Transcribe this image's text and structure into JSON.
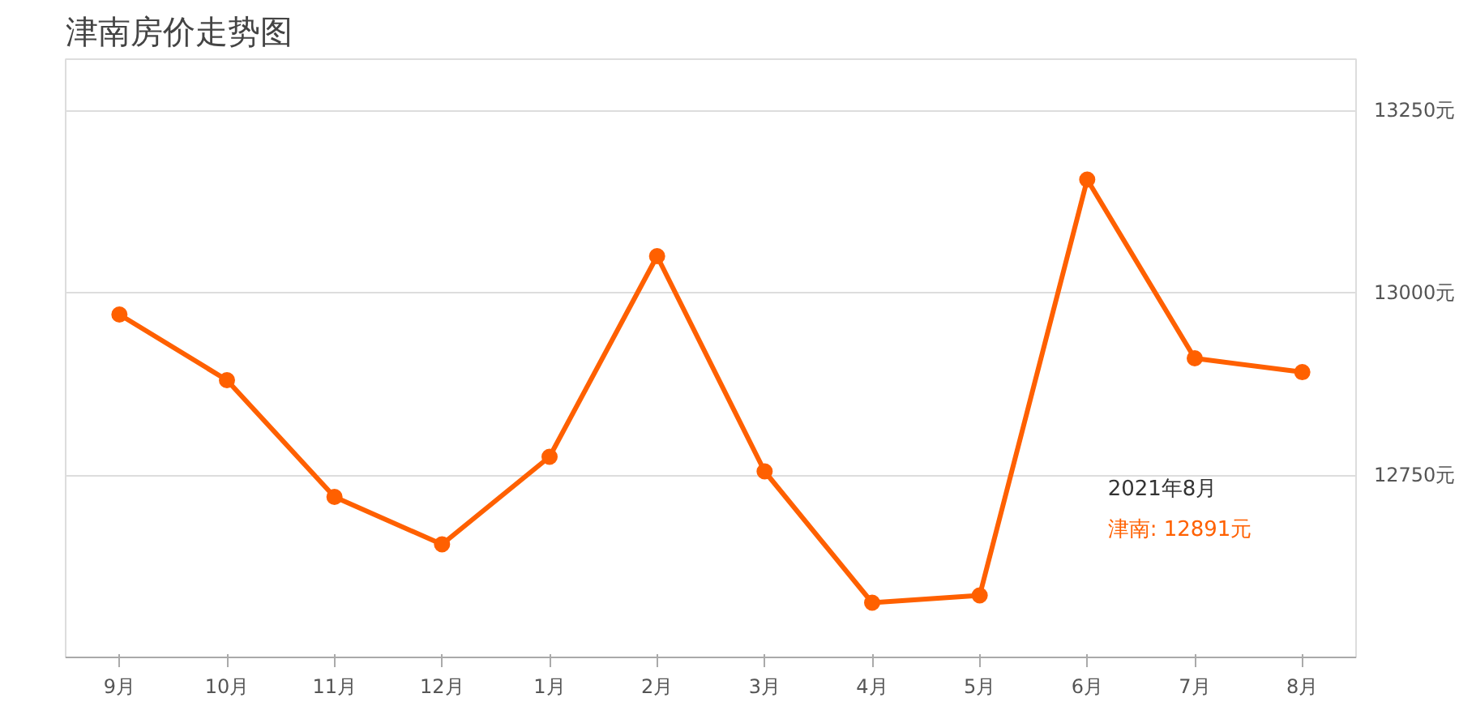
{
  "chart_data": {
    "type": "line",
    "title": "津南房价走势图",
    "categories": [
      "9月",
      "10月",
      "11月",
      "12月",
      "1月",
      "2月",
      "3月",
      "4月",
      "5月",
      "6月",
      "7月",
      "8月"
    ],
    "series": [
      {
        "color": "#ff6000",
        "values": [
          12970,
          12880,
          12720,
          12655,
          12775,
          13050,
          12755,
          12575,
          12585,
          13155,
          12910,
          12891
        ]
      }
    ],
    "ylim": [
      12500,
      13320
    ],
    "yticks": [
      {
        "value": 12500,
        "label": null
      },
      {
        "value": 12750,
        "label": "12750元"
      },
      {
        "value": 13000,
        "label": "13000元"
      },
      {
        "value": 13250,
        "label": "13250元"
      }
    ],
    "grid": "y",
    "marker": "circle",
    "line_style": "solid",
    "annotations": [
      "2021年8月",
      "津南:  12891元"
    ]
  }
}
